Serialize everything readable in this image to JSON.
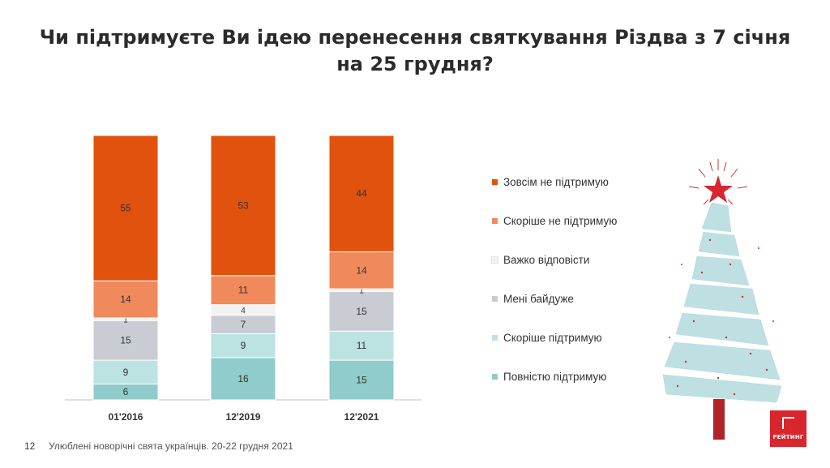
{
  "title": "Чи підтримуєте Ви ідею перенесення святкування Різдва з 7 січня на 25 грудня?",
  "footer": {
    "page_number": "12",
    "source": "Улюблені новорічні свята українців. 20-22 грудня 2021"
  },
  "logo": {
    "text": "РЕЙТИНГ"
  },
  "legend": [
    {
      "label": "Зовсім не підтримую",
      "color": "#e2520f"
    },
    {
      "label": "Скоріше  не підтримую",
      "color": "#f08a5c"
    },
    {
      "label": "Важко відповісти",
      "color": "#f2f2f2"
    },
    {
      "label": "Мені байдуже",
      "color": "#c9ccd3"
    },
    {
      "label": "Скоріше  підтримую",
      "color": "#bde2e2"
    },
    {
      "label": "Повністю підтримую",
      "color": "#8fcccb"
    }
  ],
  "chart_data": {
    "type": "bar",
    "stacked": true,
    "categories": [
      "01'2016",
      "12'2019",
      "12'2021"
    ],
    "ylim": [
      0,
      100
    ],
    "legend_position": "right",
    "grid": false,
    "series": [
      {
        "name": "Повністю підтримую",
        "color": "#8fcccb",
        "values": [
          6,
          16,
          15
        ]
      },
      {
        "name": "Скоріше  підтримую",
        "color": "#bde2e2",
        "values": [
          9,
          9,
          11
        ]
      },
      {
        "name": "Мені байдуже",
        "color": "#c9ccd3",
        "values": [
          15,
          7,
          15
        ]
      },
      {
        "name": "Важко відповісти",
        "color": "#f2f2f2",
        "values": [
          1,
          4,
          1
        ]
      },
      {
        "name": "Скоріше  не підтримую",
        "color": "#f08a5c",
        "values": [
          14,
          11,
          14
        ]
      },
      {
        "name": "Зовсім не підтримую",
        "color": "#e2520f",
        "values": [
          55,
          53,
          44
        ]
      }
    ]
  }
}
